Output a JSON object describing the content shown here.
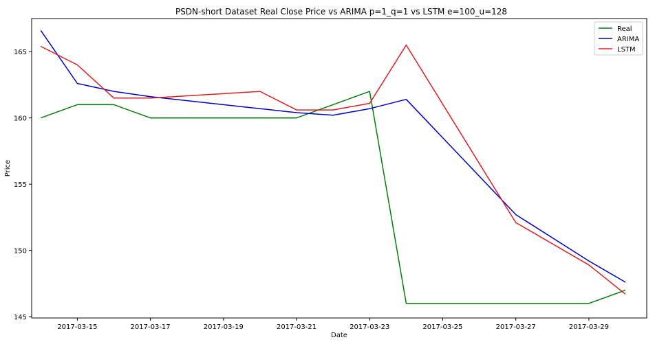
{
  "chart_data": {
    "type": "line",
    "title": "PSDN-short Dataset Real Close Price vs ARIMA p=1_q=1 vs LSTM e=100_u=128",
    "xlabel": "Date",
    "ylabel": "Price",
    "x": [
      "2017-03-14",
      "2017-03-15",
      "2017-03-16",
      "2017-03-17",
      "2017-03-20",
      "2017-03-21",
      "2017-03-22",
      "2017-03-23",
      "2017-03-24",
      "2017-03-27",
      "2017-03-29",
      "2017-03-30"
    ],
    "xlim": [
      "2017-03-13T18:00",
      "2017-03-30T14:00"
    ],
    "x_ticks": [
      "2017-03-15",
      "2017-03-17",
      "2017-03-19",
      "2017-03-21",
      "2017-03-23",
      "2017-03-25",
      "2017-03-27",
      "2017-03-29"
    ],
    "ylim": [
      144.9,
      167.5
    ],
    "y_ticks": [
      145,
      150,
      155,
      160,
      165
    ],
    "grid": false,
    "legend_position": "top-right",
    "series": [
      {
        "name": "Real",
        "color": "#008000",
        "values": [
          160,
          161,
          161,
          160,
          160,
          160,
          161,
          162,
          146,
          146,
          146,
          147
        ]
      },
      {
        "name": "ARIMA",
        "color": "#0000cc",
        "values": [
          166.6,
          162.6,
          162.0,
          161.6,
          160.7,
          160.4,
          160.2,
          160.7,
          161.4,
          152.7,
          149.2,
          147.6
        ]
      },
      {
        "name": "LSTM",
        "color": "#e31a1c",
        "values": [
          165.4,
          164.0,
          161.5,
          161.5,
          162.0,
          160.6,
          160.6,
          161.1,
          165.5,
          152.1,
          148.9,
          146.7
        ]
      }
    ]
  }
}
